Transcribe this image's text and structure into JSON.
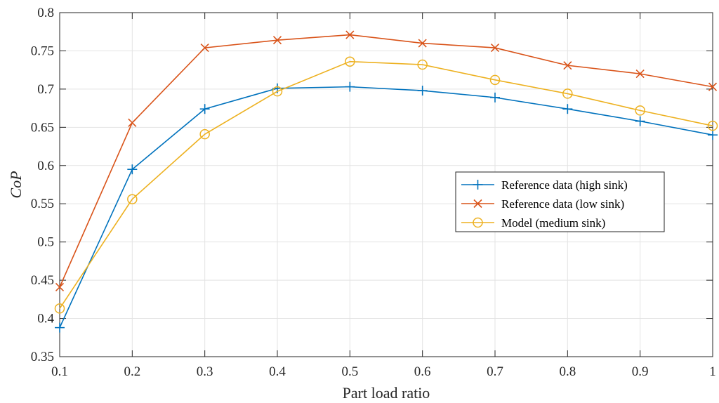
{
  "chart_data": {
    "type": "line",
    "title": "",
    "xlabel": "Part load ratio",
    "ylabel": "CoP",
    "xlim": [
      0.1,
      1.0
    ],
    "ylim": [
      0.35,
      0.8
    ],
    "grid": true,
    "legend_position": "center-right",
    "x": [
      0.1,
      0.2,
      0.3,
      0.4,
      0.5,
      0.6,
      0.7,
      0.8,
      0.9,
      1.0
    ],
    "x_tick_labels": [
      "0.1",
      "0.2",
      "0.3",
      "0.4",
      "0.5",
      "0.6",
      "0.7",
      "0.8",
      "0.9",
      "1"
    ],
    "y_ticks": [
      0.35,
      0.4,
      0.45,
      0.5,
      0.55,
      0.6,
      0.65,
      0.7,
      0.75,
      0.8
    ],
    "y_tick_labels": [
      "0.35",
      "0.4",
      "0.45",
      "0.5",
      "0.55",
      "0.6",
      "0.65",
      "0.7",
      "0.75",
      "0.8"
    ],
    "series": [
      {
        "name": "Reference data (high sink)",
        "marker": "plus",
        "color": "#0072BD",
        "values": [
          0.388,
          0.595,
          0.674,
          0.701,
          0.703,
          0.698,
          0.689,
          0.674,
          0.658,
          0.64
        ]
      },
      {
        "name": "Reference data (low sink)",
        "marker": "x",
        "color": "#D95319",
        "values": [
          0.441,
          0.656,
          0.754,
          0.764,
          0.771,
          0.76,
          0.754,
          0.731,
          0.72,
          0.703
        ]
      },
      {
        "name": "Model (medium sink)",
        "marker": "circle",
        "color": "#EDB120",
        "values": [
          0.413,
          0.556,
          0.641,
          0.697,
          0.736,
          0.732,
          0.712,
          0.694,
          0.672,
          0.652
        ]
      }
    ]
  }
}
